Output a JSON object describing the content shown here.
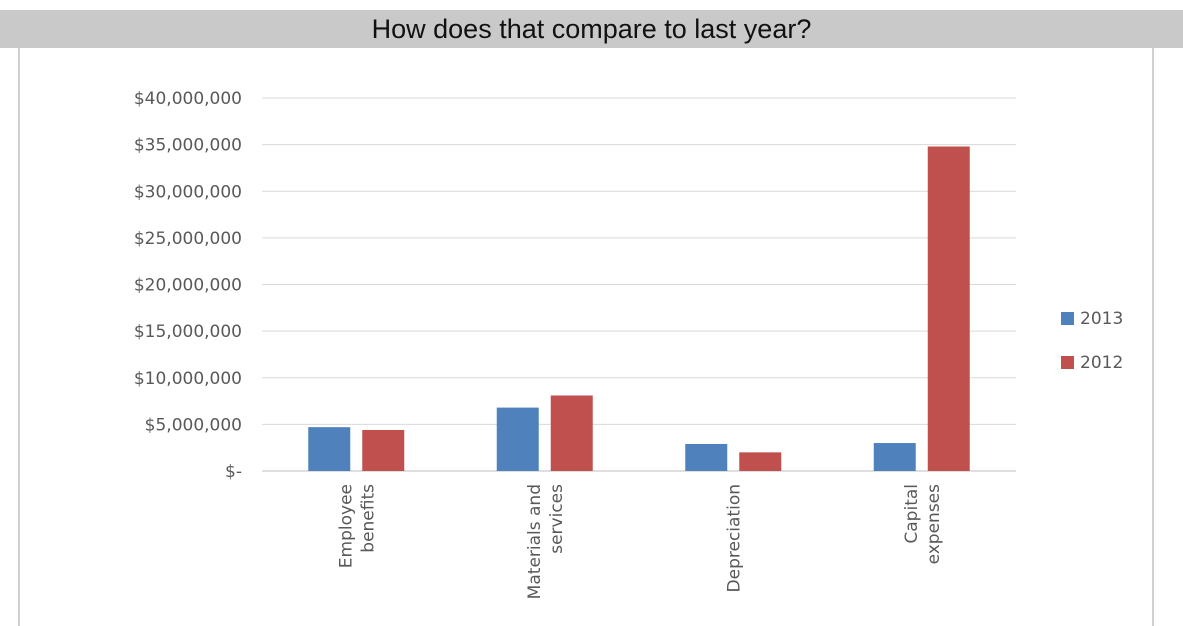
{
  "header": {
    "title": "How does that compare to last year?"
  },
  "colors": {
    "2013": "#4f81bd",
    "2012": "#c0504d",
    "grid": "#d9d9d9",
    "axis_text": "#595959"
  },
  "chart_data": {
    "type": "bar",
    "title": "",
    "xlabel": "",
    "ylabel": "",
    "categories": [
      [
        "Employee",
        "benefits"
      ],
      [
        "Materials and",
        "services"
      ],
      [
        "Depreciation"
      ],
      [
        "Capital",
        "expenses"
      ]
    ],
    "series": [
      {
        "name": "2013",
        "values": [
          4700000,
          6800000,
          2900000,
          3000000
        ]
      },
      {
        "name": "2012",
        "values": [
          4400000,
          8100000,
          2000000,
          34800000
        ]
      }
    ],
    "ylim": [
      0,
      40000000
    ],
    "yticks": [
      0,
      5000000,
      10000000,
      15000000,
      20000000,
      25000000,
      30000000,
      35000000,
      40000000
    ],
    "ytick_labels": [
      "$-",
      "$5,000,000",
      "$10,000,000",
      "$15,000,000",
      "$20,000,000",
      "$25,000,000",
      "$30,000,000",
      "$35,000,000",
      "$40,000,000"
    ],
    "grid": true,
    "legend_position": "right"
  }
}
